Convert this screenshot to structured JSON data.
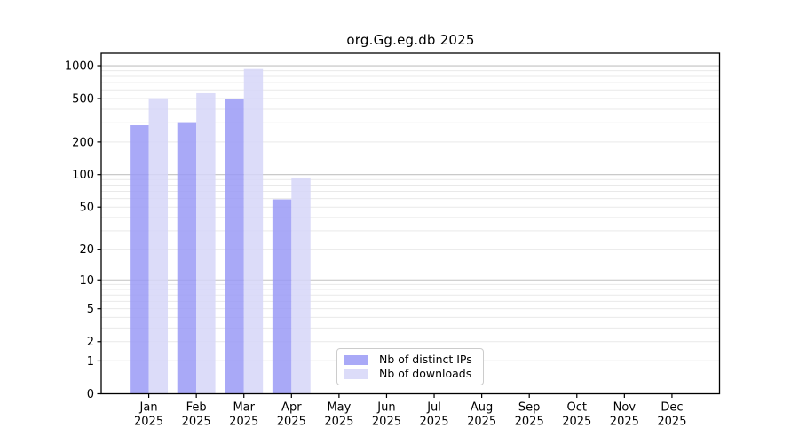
{
  "title": "org.Gg.eg.db 2025",
  "chart_data": {
    "type": "bar",
    "title": "org.Gg.eg.db 2025",
    "x_months": [
      "Jan",
      "Feb",
      "Mar",
      "Apr",
      "May",
      "Jun",
      "Jul",
      "Aug",
      "Sep",
      "Oct",
      "Nov",
      "Dec"
    ],
    "x_year": "2025",
    "series": [
      {
        "name": "Nb of distinct IPs",
        "color": "#9a9af6",
        "values": [
          285,
          304,
          500,
          59,
          0,
          0,
          0,
          0,
          0,
          0,
          0,
          0
        ]
      },
      {
        "name": "Nb of downloads",
        "color": "#d6d6f8",
        "values": [
          504,
          560,
          934,
          94,
          0,
          0,
          0,
          0,
          0,
          0,
          0,
          0
        ]
      }
    ],
    "bar_fill_opacity": 0.85,
    "yscale": "log10(value+1)",
    "yticks": [
      1000,
      500,
      200,
      100,
      50,
      20,
      10,
      5,
      2,
      1,
      0
    ],
    "ylim": [
      0,
      1300
    ],
    "grid": {
      "major": [
        1,
        10,
        100,
        1000
      ],
      "minor": [
        2,
        3,
        4,
        5,
        6,
        7,
        8,
        9,
        20,
        30,
        40,
        50,
        60,
        70,
        80,
        90,
        200,
        300,
        400,
        500,
        600,
        700,
        800,
        900
      ]
    },
    "colors": {
      "background": "#ffffff",
      "axis": "#000000",
      "grid_major": "#c2c2c2",
      "grid_minor": "#e9e9e9",
      "text": "#000000",
      "legend_border": "#cccccc"
    },
    "legend_position": "bottom-center"
  }
}
